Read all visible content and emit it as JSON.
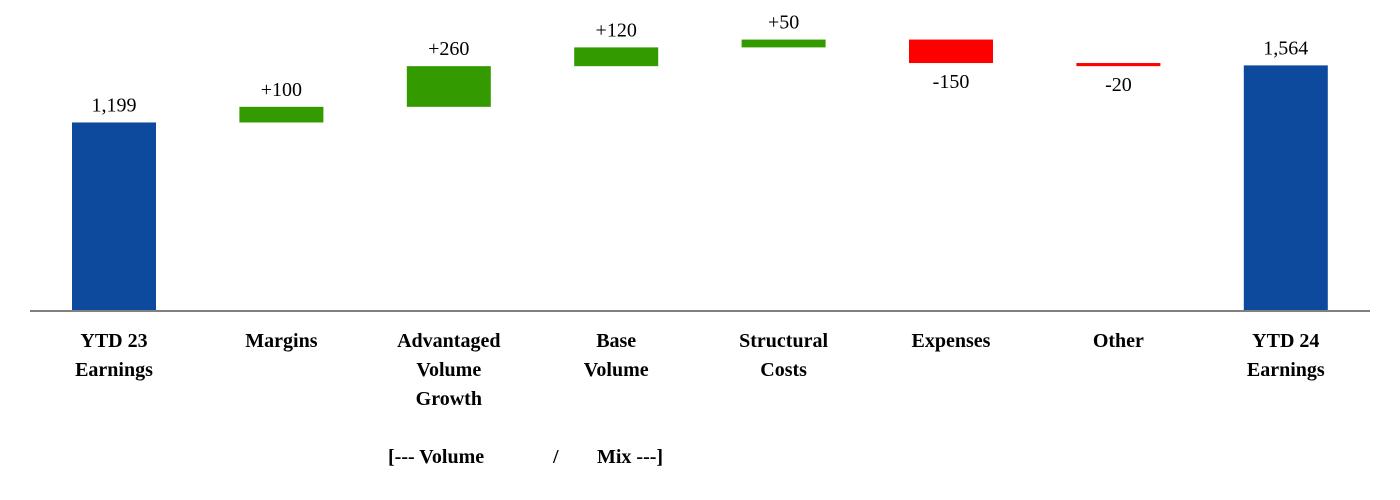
{
  "chart_data": {
    "type": "bar",
    "subtype": "waterfall",
    "title": "",
    "categories": [
      [
        "YTD 23",
        "Earnings"
      ],
      [
        "Margins"
      ],
      [
        "Advantaged",
        "Volume",
        "Growth"
      ],
      [
        "Base",
        "Volume"
      ],
      [
        "Structural",
        "Costs"
      ],
      [
        "Expenses"
      ],
      [
        "Other"
      ],
      [
        "YTD 24",
        "Earnings"
      ]
    ],
    "kinds": [
      "total",
      "delta",
      "delta",
      "delta",
      "delta",
      "delta",
      "delta",
      "total"
    ],
    "values": [
      1199,
      100,
      260,
      120,
      50,
      -150,
      -20,
      1564
    ],
    "value_labels": [
      "1,199",
      "+100",
      "+260",
      "+120",
      "+50",
      "-150",
      "-20",
      "1,564"
    ],
    "footnote": {
      "left": "[--- Volume",
      "middle": "/",
      "right": "Mix ---]"
    },
    "colors": {
      "total": "#0d4a9e",
      "increase": "#339a00",
      "decrease": "#ff0000",
      "axis": "#808080"
    },
    "ylim": [
      0,
      1950
    ],
    "grid": false,
    "legend": "none"
  }
}
